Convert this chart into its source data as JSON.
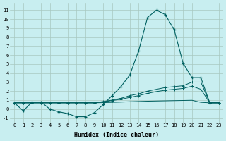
{
  "xlabel": "Humidex (Indice chaleur)",
  "bg_color": "#c8eef0",
  "grid_color": "#a8c8c0",
  "line_color": "#006060",
  "xlim": [
    -0.5,
    23.5
  ],
  "ylim": [
    -1.5,
    11.8
  ],
  "xticks": [
    0,
    1,
    2,
    3,
    4,
    5,
    6,
    7,
    8,
    9,
    10,
    11,
    12,
    13,
    14,
    15,
    16,
    17,
    18,
    19,
    20,
    21,
    22,
    23
  ],
  "yticks": [
    -1,
    0,
    1,
    2,
    3,
    4,
    5,
    6,
    7,
    8,
    9,
    10,
    11
  ],
  "series": {
    "line1_x": [
      0,
      1,
      2,
      3,
      4,
      5,
      6,
      7,
      8,
      9,
      10,
      11,
      12,
      13,
      14,
      15,
      16,
      17,
      18,
      19,
      20,
      21,
      22,
      23
    ],
    "line1_y": [
      0.7,
      -0.2,
      0.8,
      0.8,
      0.0,
      -0.3,
      -0.5,
      -0.85,
      -0.85,
      -0.4,
      0.5,
      1.5,
      2.5,
      3.8,
      6.5,
      10.2,
      11.0,
      10.5,
      8.8,
      5.1,
      3.5,
      3.5,
      0.7,
      0.7
    ],
    "line2_x": [
      0,
      1,
      2,
      3,
      4,
      5,
      6,
      7,
      8,
      9,
      10,
      11,
      12,
      13,
      14,
      15,
      16,
      17,
      18,
      19,
      20,
      21,
      22,
      23
    ],
    "line2_y": [
      0.7,
      0.7,
      0.7,
      0.7,
      0.7,
      0.7,
      0.7,
      0.7,
      0.7,
      0.7,
      0.85,
      1.0,
      1.2,
      1.5,
      1.7,
      2.0,
      2.2,
      2.4,
      2.5,
      2.6,
      3.0,
      3.0,
      0.7,
      0.7
    ],
    "line3_x": [
      0,
      1,
      2,
      3,
      4,
      5,
      6,
      7,
      8,
      9,
      10,
      11,
      12,
      13,
      14,
      15,
      16,
      17,
      18,
      19,
      20,
      21,
      22,
      23
    ],
    "line3_y": [
      0.7,
      0.7,
      0.7,
      0.7,
      0.7,
      0.7,
      0.7,
      0.7,
      0.7,
      0.7,
      0.8,
      0.95,
      1.1,
      1.3,
      1.5,
      1.75,
      1.95,
      2.1,
      2.2,
      2.3,
      2.55,
      2.2,
      0.7,
      0.7
    ],
    "line4_x": [
      0,
      1,
      2,
      3,
      4,
      5,
      6,
      7,
      8,
      9,
      10,
      11,
      12,
      13,
      14,
      15,
      16,
      17,
      18,
      19,
      20,
      21,
      22,
      23
    ],
    "line4_y": [
      0.7,
      0.7,
      0.7,
      0.7,
      0.7,
      0.7,
      0.7,
      0.7,
      0.7,
      0.7,
      0.72,
      0.75,
      0.78,
      0.82,
      0.85,
      0.88,
      0.9,
      0.92,
      0.94,
      0.96,
      0.98,
      0.75,
      0.7,
      0.7
    ]
  }
}
